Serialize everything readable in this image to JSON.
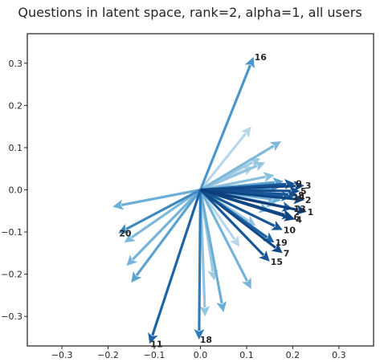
{
  "chart_data": {
    "type": "quiver",
    "title": "Questions in latent space, rank=2, alpha=1, all users",
    "xlim": [
      -0.375,
      0.375
    ],
    "ylim": [
      -0.37,
      0.37
    ],
    "x_ticks": [
      -0.3,
      -0.2,
      -0.1,
      0.0,
      0.1,
      0.2,
      0.3
    ],
    "y_ticks": [
      -0.3,
      -0.2,
      -0.1,
      0.0,
      0.1,
      0.2,
      0.3
    ],
    "x_tick_labels": [
      "−0.3",
      "−0.2",
      "−0.1",
      "0.0",
      "0.1",
      "0.2",
      "0.3"
    ],
    "y_tick_labels": [
      "−0.3",
      "−0.2",
      "−0.1",
      "0.0",
      "0.1",
      "0.2",
      "0.3"
    ],
    "grid": false,
    "origin": [
      0,
      0
    ],
    "colormap": "Blues",
    "vectors": [
      {
        "label": "16",
        "x": 0.115,
        "y": 0.315,
        "shade": 0.6
      },
      {
        "label": "9",
        "x": 0.205,
        "y": 0.015,
        "shade": 0.85
      },
      {
        "label": "3",
        "x": 0.225,
        "y": 0.01,
        "shade": 0.9
      },
      {
        "label": "5",
        "x": 0.215,
        "y": -0.003,
        "shade": 0.88
      },
      {
        "label": "8",
        "x": 0.21,
        "y": -0.012,
        "shade": 0.85
      },
      {
        "label": "14",
        "x": 0.198,
        "y": -0.017,
        "shade": 0.8
      },
      {
        "label": "2",
        "x": 0.225,
        "y": -0.024,
        "shade": 0.92
      },
      {
        "label": "13",
        "x": 0.2,
        "y": -0.045,
        "shade": 0.8
      },
      {
        "label": "1",
        "x": 0.23,
        "y": -0.052,
        "shade": 0.95
      },
      {
        "label": "6",
        "x": 0.2,
        "y": -0.065,
        "shade": 0.9
      },
      {
        "label": "4",
        "x": 0.205,
        "y": -0.07,
        "shade": 0.92
      },
      {
        "label": "10",
        "x": 0.178,
        "y": -0.095,
        "shade": 0.85
      },
      {
        "label": "19",
        "x": 0.16,
        "y": -0.125,
        "shade": 0.8
      },
      {
        "label": "7",
        "x": 0.178,
        "y": -0.15,
        "shade": 0.9
      },
      {
        "label": "15",
        "x": 0.15,
        "y": -0.17,
        "shade": 0.85
      },
      {
        "label": "20",
        "x": -0.178,
        "y": -0.103,
        "shade": 0.65
      },
      {
        "label": "11",
        "x": -0.11,
        "y": -0.365,
        "shade": 0.8
      },
      {
        "label": "18",
        "x": -0.003,
        "y": -0.355,
        "shade": 0.7
      },
      {
        "label": "",
        "x": 0.11,
        "y": 0.15,
        "shade": 0.15
      },
      {
        "label": "",
        "x": 0.175,
        "y": 0.115,
        "shade": 0.4
      },
      {
        "label": "",
        "x": 0.14,
        "y": 0.065,
        "shade": 0.3
      },
      {
        "label": "",
        "x": 0.13,
        "y": 0.075,
        "shade": 0.25
      },
      {
        "label": "",
        "x": 0.115,
        "y": 0.055,
        "shade": 0.2
      },
      {
        "label": "",
        "x": 0.16,
        "y": 0.035,
        "shade": 0.35
      },
      {
        "label": "",
        "x": 0.18,
        "y": 0.02,
        "shade": 0.55
      },
      {
        "label": "",
        "x": 0.17,
        "y": 0.005,
        "shade": 0.6
      },
      {
        "label": "",
        "x": 0.175,
        "y": -0.025,
        "shade": 0.5
      },
      {
        "label": "",
        "x": 0.165,
        "y": -0.035,
        "shade": 0.35
      },
      {
        "label": "",
        "x": 0.15,
        "y": -0.05,
        "shade": 0.45
      },
      {
        "label": "",
        "x": 0.12,
        "y": -0.085,
        "shade": 0.3
      },
      {
        "label": "",
        "x": 0.085,
        "y": -0.135,
        "shade": 0.15
      },
      {
        "label": "",
        "x": 0.11,
        "y": -0.235,
        "shade": 0.45
      },
      {
        "label": "",
        "x": 0.05,
        "y": -0.29,
        "shade": 0.5
      },
      {
        "label": "",
        "x": 0.03,
        "y": -0.215,
        "shade": 0.25
      },
      {
        "label": "",
        "x": 0.01,
        "y": -0.3,
        "shade": 0.3
      },
      {
        "label": "",
        "x": -0.19,
        "y": -0.04,
        "shade": 0.5
      },
      {
        "label": "",
        "x": -0.165,
        "y": -0.125,
        "shade": 0.4
      },
      {
        "label": "",
        "x": -0.16,
        "y": -0.18,
        "shade": 0.45
      },
      {
        "label": "",
        "x": -0.15,
        "y": -0.22,
        "shade": 0.55
      }
    ]
  }
}
